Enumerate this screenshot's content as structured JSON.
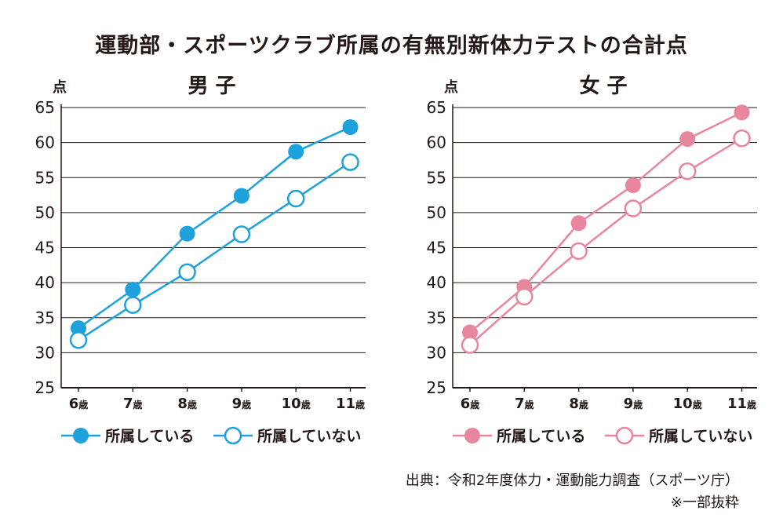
{
  "title": "運動部・スポーツクラブ所属の有無別新体力テストの合計点",
  "source": "出典：令和2年度体力・運動能力調査（スポーツ庁）",
  "note": "※一部抜粋",
  "chart_data": [
    {
      "type": "line",
      "title": "男 子",
      "ylabel": "点",
      "ylim": [
        25,
        65
      ],
      "yticks": [
        "25",
        "30",
        "35",
        "40",
        "45",
        "50",
        "55",
        "60",
        "65"
      ],
      "categories": [
        "6",
        "7",
        "8",
        "9",
        "10",
        "11"
      ],
      "age_suffix": "歳",
      "color": "#1ea2dc",
      "series": [
        {
          "name": "所属している",
          "marker": "filled",
          "values": [
            33.5,
            39.0,
            47.0,
            52.4,
            58.7,
            62.2
          ]
        },
        {
          "name": "所属していない",
          "marker": "hollow",
          "values": [
            31.8,
            36.8,
            41.5,
            46.9,
            52.0,
            57.2
          ]
        }
      ]
    },
    {
      "type": "line",
      "title": "女 子",
      "ylabel": "点",
      "ylim": [
        25,
        65
      ],
      "yticks": [
        "25",
        "30",
        "35",
        "40",
        "45",
        "50",
        "55",
        "60",
        "65"
      ],
      "categories": [
        "6",
        "7",
        "8",
        "9",
        "10",
        "11"
      ],
      "age_suffix": "歳",
      "color": "#e8869f",
      "series": [
        {
          "name": "所属している",
          "marker": "filled",
          "values": [
            32.9,
            39.4,
            48.5,
            53.9,
            60.5,
            64.3
          ]
        },
        {
          "name": "所属していない",
          "marker": "hollow",
          "values": [
            31.1,
            38.0,
            44.5,
            50.6,
            55.9,
            60.6
          ]
        }
      ]
    }
  ]
}
